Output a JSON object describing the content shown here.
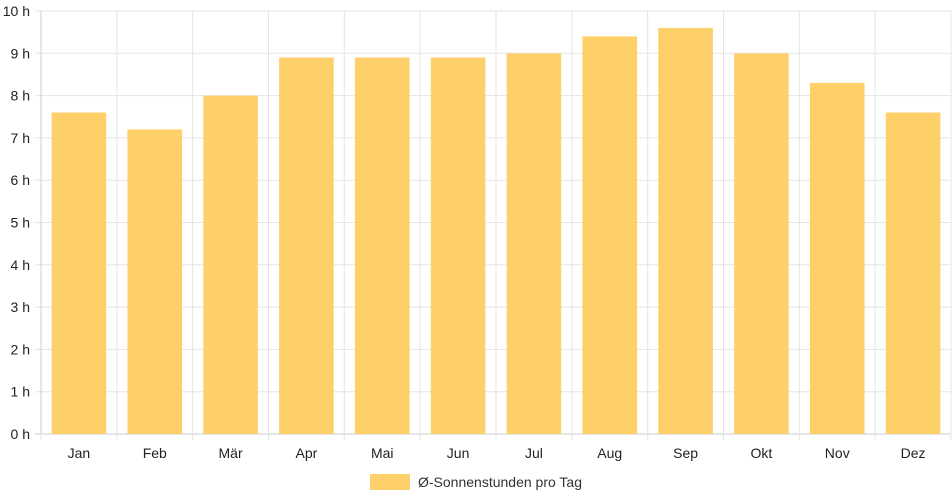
{
  "chart_data": {
    "type": "bar",
    "categories": [
      "Jan",
      "Feb",
      "Mär",
      "Apr",
      "Mai",
      "Jun",
      "Jul",
      "Aug",
      "Sep",
      "Okt",
      "Nov",
      "Dez"
    ],
    "series": [
      {
        "name": "Ø-Sonnenstunden pro Tag",
        "values": [
          7.6,
          7.2,
          8.0,
          8.9,
          8.9,
          8.9,
          9.0,
          9.4,
          9.6,
          9.0,
          8.3,
          7.6
        ],
        "color": "#fdd069"
      }
    ],
    "y_ticks": [
      "0 h",
      "1 h",
      "2 h",
      "3 h",
      "4 h",
      "5 h",
      "6 h",
      "7 h",
      "8 h",
      "9 h",
      "10 h"
    ],
    "ylim": [
      0,
      10
    ],
    "grid": true,
    "legend_position": "bottom"
  }
}
